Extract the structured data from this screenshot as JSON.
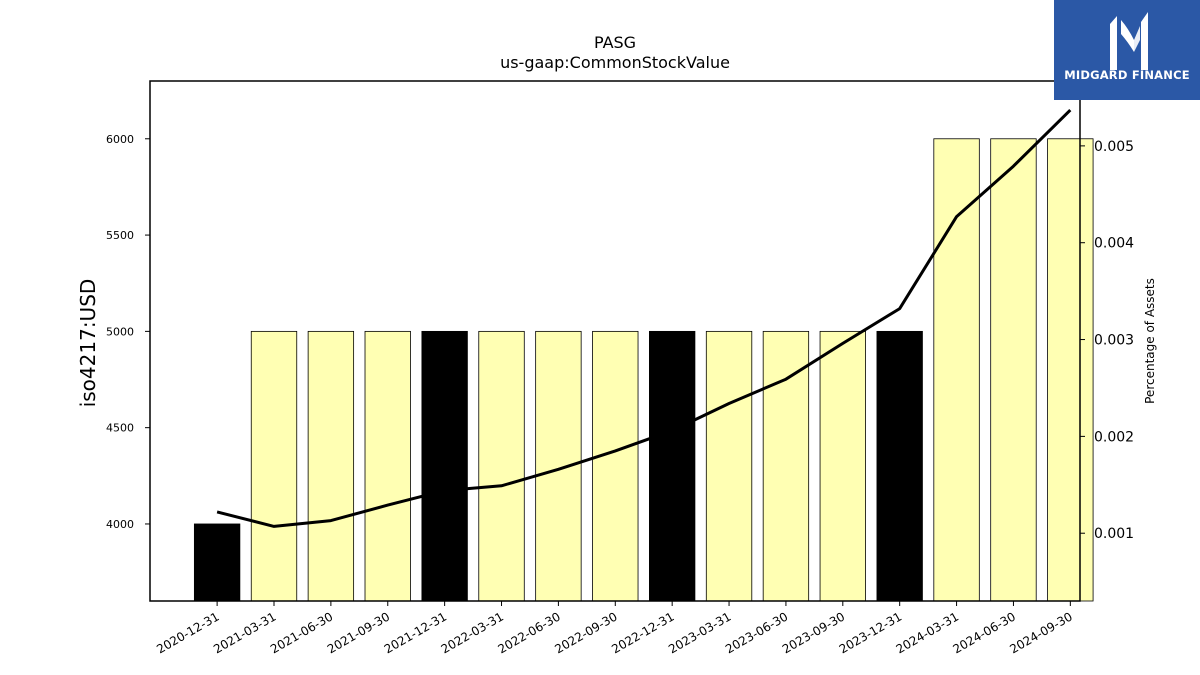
{
  "brand": {
    "name": "MIDGARD FINANCE",
    "bg_color": "#2b58a6",
    "text_color": "#ffffff"
  },
  "chart_data": {
    "type": "bar",
    "title": "PASG",
    "subtitle": "us-gaap:CommonStockValue",
    "ylabel": "iso4217:USD",
    "y2label": "Percentage of Assets",
    "categories": [
      "2020-12-31",
      "2021-03-31",
      "2021-06-30",
      "2021-09-30",
      "2021-12-31",
      "2022-03-31",
      "2022-06-30",
      "2022-09-30",
      "2022-12-31",
      "2023-03-31",
      "2023-06-30",
      "2023-09-30",
      "2023-12-31",
      "2024-03-31",
      "2024-06-30",
      "2024-09-30"
    ],
    "values": [
      4000,
      5000,
      5000,
      5000,
      5000,
      5000,
      5000,
      5000,
      5000,
      5000,
      5000,
      5000,
      5000,
      6000,
      6000,
      6000
    ],
    "bar_colors": [
      "#000000",
      "#ffffb3",
      "#ffffb3",
      "#ffffb3",
      "#000000",
      "#ffffb3",
      "#ffffb3",
      "#ffffb3",
      "#000000",
      "#ffffb3",
      "#ffffb3",
      "#ffffb3",
      "#000000",
      "#ffffb3",
      "#ffffb3",
      "#ffffb3"
    ],
    "line_series": {
      "values": [
        0.00122,
        0.00107,
        0.00113,
        0.00129,
        0.00144,
        0.00149,
        0.00166,
        0.00185,
        0.00206,
        0.00234,
        0.00259,
        0.00296,
        0.00332,
        0.00427,
        0.00479,
        0.00537
      ],
      "color": "#000000"
    },
    "ylim": [
      3600,
      6300
    ],
    "yticks": [
      4000,
      4500,
      5000,
      5500,
      6000
    ],
    "y2lim": [
      0.0003,
      0.00567
    ],
    "y2ticks": [
      0.001,
      0.002,
      0.003,
      0.004,
      0.005
    ],
    "grid": false
  }
}
